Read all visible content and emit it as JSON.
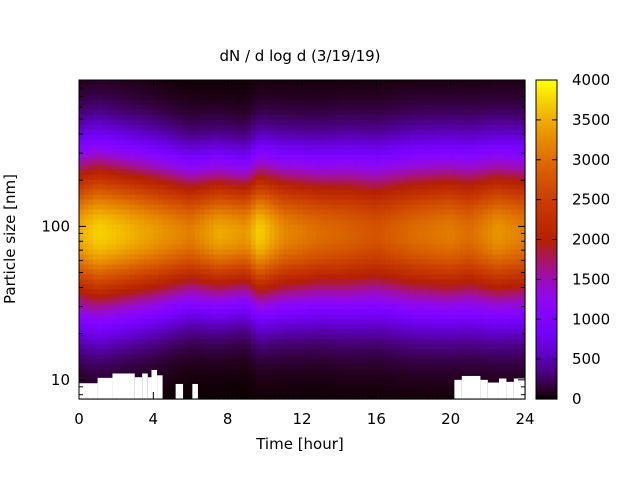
{
  "chart_data": {
    "type": "heatmap",
    "title": "dN / d log d (3/19/19)",
    "xlabel": "Time [hour]",
    "ylabel": "Particle size [nm]",
    "xlim": [
      0,
      24
    ],
    "ylim": [
      7.5,
      900
    ],
    "y_scale": "log",
    "x_ticks": [
      0,
      4,
      8,
      12,
      16,
      20,
      24
    ],
    "x_tick_labels": [
      "0",
      "4",
      "8",
      "12",
      "16",
      "20",
      "24"
    ],
    "y_ticks": [
      10,
      100
    ],
    "y_tick_labels": [
      "10",
      "100"
    ],
    "colorbar": {
      "range": [
        0,
        4000
      ],
      "ticks": [
        0,
        500,
        1000,
        1500,
        2000,
        2500,
        3000,
        3500,
        4000
      ],
      "tick_labels": [
        "0",
        "500",
        "1000",
        "1500",
        "2000",
        "2500",
        "3000",
        "3500",
        "4000"
      ],
      "colormap": "gnuplot (black-purple-red-yellow)"
    },
    "peak_diameter_nm": 90,
    "time_hour": [
      0,
      1,
      2,
      4,
      6,
      7.5,
      9,
      9.7,
      11,
      13,
      14.5,
      16,
      18,
      20,
      21,
      22.5,
      24
    ],
    "peak_concentration": [
      3500,
      3750,
      3650,
      3400,
      3150,
      3500,
      3350,
      3750,
      3250,
      3000,
      2900,
      2750,
      3000,
      3150,
      3000,
      3350,
      3150
    ],
    "distribution_width": [
      0.36,
      0.37,
      0.36,
      0.34,
      0.31,
      0.31,
      0.3,
      0.33,
      0.33,
      0.33,
      0.34,
      0.34,
      0.35,
      0.35,
      0.35,
      0.35,
      0.35
    ],
    "missing_data": [
      {
        "t0": 0,
        "t1": 1.0,
        "d_max": 9.5
      },
      {
        "t0": 1.0,
        "t1": 1.8,
        "d_max": 10.3
      },
      {
        "t0": 1.8,
        "t1": 3.0,
        "d_max": 11.0
      },
      {
        "t0": 3.0,
        "t1": 3.4,
        "d_max": 10.4
      },
      {
        "t0": 3.4,
        "t1": 3.7,
        "d_max": 11.0
      },
      {
        "t0": 3.7,
        "t1": 3.9,
        "d_max": 10.4
      },
      {
        "t0": 3.9,
        "t1": 4.2,
        "d_max": 11.6
      },
      {
        "t0": 4.2,
        "t1": 4.5,
        "d_max": 10.7
      },
      {
        "t0": 5.2,
        "t1": 5.6,
        "d_max": 9.4
      },
      {
        "t0": 6.1,
        "t1": 6.4,
        "d_max": 9.4
      },
      {
        "t0": 20.2,
        "t1": 20.6,
        "d_max": 10.0
      },
      {
        "t0": 20.6,
        "t1": 21.6,
        "d_max": 10.6
      },
      {
        "t0": 21.6,
        "t1": 22.0,
        "d_max": 10.0
      },
      {
        "t0": 22.0,
        "t1": 22.6,
        "d_max": 9.6
      },
      {
        "t0": 22.6,
        "t1": 23.0,
        "d_max": 10.2
      },
      {
        "t0": 23.0,
        "t1": 23.4,
        "d_max": 9.7
      },
      {
        "t0": 23.4,
        "t1": 24,
        "d_max": 10.2
      }
    ]
  }
}
